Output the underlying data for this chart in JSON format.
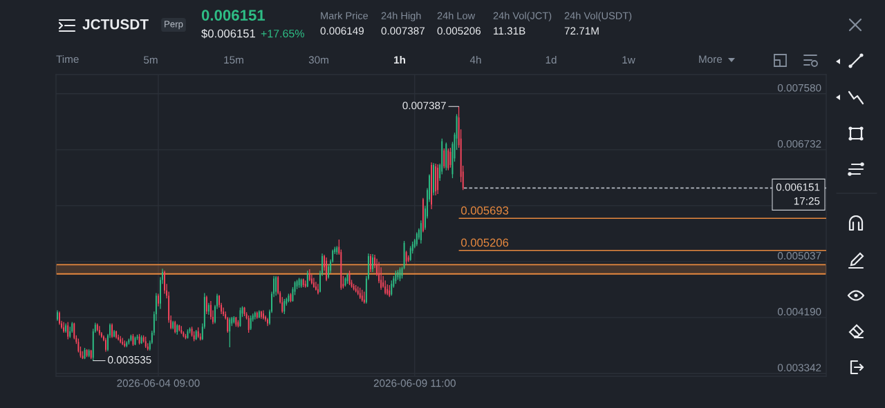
{
  "chart_data": {
    "type": "candlestick",
    "title": "JCTUSDT",
    "x": [
      "2026-06-02T09:00",
      "2026-06-02T10:00",
      "2026-06-02T11:00",
      "2026-06-02T12:00",
      "2026-06-02T13:00",
      "2026-06-02T14:00",
      "2026-06-02T15:00",
      "2026-06-02T16:00",
      "2026-06-02T17:00",
      "2026-06-02T18:00",
      "2026-06-02T19:00",
      "2026-06-02T20:00",
      "2026-06-02T21:00",
      "2026-06-02T22:00",
      "2026-06-02T23:00",
      "2026-06-03T00:00",
      "2026-06-03T01:00",
      "2026-06-03T02:00",
      "2026-06-03T03:00",
      "2026-06-03T04:00",
      "2026-06-03T05:00",
      "2026-06-03T06:00",
      "2026-06-03T07:00",
      "2026-06-03T08:00",
      "2026-06-03T09:00",
      "2026-06-03T10:00",
      "2026-06-03T11:00",
      "2026-06-03T12:00",
      "2026-06-03T13:00",
      "2026-06-03T14:00",
      "2026-06-03T15:00",
      "2026-06-03T16:00",
      "2026-06-03T17:00",
      "2026-06-03T18:00",
      "2026-06-03T19:00",
      "2026-06-03T20:00",
      "2026-06-03T21:00",
      "2026-06-03T22:00",
      "2026-06-03T23:00",
      "2026-06-04T00:00",
      "2026-06-04T01:00",
      "2026-06-04T02:00",
      "2026-06-04T03:00",
      "2026-06-04T04:00",
      "2026-06-04T05:00",
      "2026-06-04T06:00",
      "2026-06-04T07:00",
      "2026-06-04T08:00",
      "2026-06-04T09:00",
      "2026-06-04T10:00",
      "2026-06-04T11:00",
      "2026-06-04T12:00",
      "2026-06-04T13:00",
      "2026-06-04T14:00",
      "2026-06-04T15:00",
      "2026-06-04T16:00",
      "2026-06-04T17:00",
      "2026-06-04T18:00",
      "2026-06-04T19:00",
      "2026-06-04T20:00",
      "2026-06-04T21:00",
      "2026-06-04T22:00",
      "2026-06-04T23:00",
      "2026-06-05T00:00",
      "2026-06-05T01:00",
      "2026-06-05T02:00",
      "2026-06-05T03:00",
      "2026-06-05T04:00",
      "2026-06-05T05:00",
      "2026-06-05T06:00",
      "2026-06-05T07:00",
      "2026-06-05T08:00",
      "2026-06-05T09:00",
      "2026-06-05T10:00",
      "2026-06-05T11:00",
      "2026-06-05T12:00",
      "2026-06-05T13:00",
      "2026-06-05T14:00",
      "2026-06-05T15:00",
      "2026-06-05T16:00",
      "2026-06-05T17:00",
      "2026-06-05T18:00",
      "2026-06-05T19:00",
      "2026-06-05T20:00",
      "2026-06-05T21:00",
      "2026-06-05T22:00",
      "2026-06-05T23:00",
      "2026-06-06T00:00",
      "2026-06-06T01:00",
      "2026-06-06T02:00",
      "2026-06-06T03:00",
      "2026-06-06T04:00",
      "2026-06-06T05:00",
      "2026-06-06T06:00",
      "2026-06-06T07:00",
      "2026-06-06T08:00",
      "2026-06-06T09:00",
      "2026-06-06T10:00",
      "2026-06-06T11:00",
      "2026-06-06T12:00",
      "2026-06-06T13:00",
      "2026-06-06T14:00",
      "2026-06-06T15:00",
      "2026-06-06T16:00",
      "2026-06-06T17:00",
      "2026-06-06T18:00",
      "2026-06-06T19:00",
      "2026-06-06T20:00",
      "2026-06-06T21:00",
      "2026-06-06T22:00",
      "2026-06-06T23:00",
      "2026-06-07T00:00",
      "2026-06-07T01:00",
      "2026-06-07T02:00",
      "2026-06-07T03:00",
      "2026-06-07T04:00",
      "2026-06-07T05:00",
      "2026-06-07T06:00",
      "2026-06-07T07:00",
      "2026-06-07T08:00",
      "2026-06-07T09:00",
      "2026-06-07T10:00",
      "2026-06-07T11:00",
      "2026-06-07T12:00",
      "2026-06-07T13:00",
      "2026-06-07T14:00",
      "2026-06-07T15:00",
      "2026-06-07T16:00",
      "2026-06-07T17:00",
      "2026-06-07T18:00",
      "2026-06-07T19:00",
      "2026-06-07T20:00",
      "2026-06-07T21:00",
      "2026-06-07T22:00",
      "2026-06-07T23:00",
      "2026-06-08T00:00",
      "2026-06-08T01:00",
      "2026-06-08T02:00",
      "2026-06-08T03:00",
      "2026-06-08T04:00",
      "2026-06-08T05:00",
      "2026-06-08T06:00",
      "2026-06-08T07:00",
      "2026-06-08T08:00",
      "2026-06-08T09:00",
      "2026-06-08T10:00",
      "2026-06-08T11:00",
      "2026-06-08T12:00",
      "2026-06-08T13:00",
      "2026-06-08T14:00",
      "2026-06-08T15:00",
      "2026-06-08T16:00",
      "2026-06-08T17:00",
      "2026-06-08T18:00",
      "2026-06-08T19:00",
      "2026-06-08T20:00",
      "2026-06-08T21:00",
      "2026-06-08T22:00",
      "2026-06-08T23:00",
      "2026-06-09T00:00",
      "2026-06-09T01:00",
      "2026-06-09T02:00",
      "2026-06-09T03:00",
      "2026-06-09T04:00",
      "2026-06-09T05:00",
      "2026-06-09T06:00",
      "2026-06-09T07:00",
      "2026-06-09T08:00",
      "2026-06-09T09:00",
      "2026-06-09T10:00",
      "2026-06-09T11:00",
      "2026-06-09T12:00",
      "2026-06-09T13:00",
      "2026-06-09T14:00",
      "2026-06-09T15:00",
      "2026-06-09T16:00",
      "2026-06-09T17:00",
      "2026-06-09T18:00",
      "2026-06-09T19:00",
      "2026-06-09T20:00",
      "2026-06-09T21:00",
      "2026-06-09T22:00",
      "2026-06-09T23:00",
      "2026-06-10T00:00",
      "2026-06-10T01:00",
      "2026-06-10T02:00",
      "2026-06-10T03:00",
      "2026-06-10T04:00",
      "2026-06-10T05:00",
      "2026-06-10T06:00",
      "2026-06-10T07:00",
      "2026-06-10T08:00",
      "2026-06-10T09:00",
      "2026-06-10T10:00"
    ],
    "ohlc": [
      [
        0.00416,
        0.0043,
        0.00414,
        0.00427
      ],
      [
        0.00426,
        0.00428,
        0.00408,
        0.0041
      ],
      [
        0.0041,
        0.00414,
        0.00402,
        0.00404
      ],
      [
        0.00404,
        0.00412,
        0.00396,
        0.00398
      ],
      [
        0.00398,
        0.0041,
        0.00396,
        0.00407
      ],
      [
        0.00407,
        0.00412,
        0.00386,
        0.0039
      ],
      [
        0.0039,
        0.00405,
        0.00388,
        0.00398
      ],
      [
        0.00398,
        0.00412,
        0.00396,
        0.0041
      ],
      [
        0.0041,
        0.00411,
        0.00386,
        0.00388
      ],
      [
        0.00388,
        0.00392,
        0.00379,
        0.00382
      ],
      [
        0.00382,
        0.00387,
        0.00366,
        0.00368
      ],
      [
        0.00368,
        0.00375,
        0.00358,
        0.00361
      ],
      [
        0.00361,
        0.00368,
        0.00356,
        0.00357
      ],
      [
        0.00357,
        0.00373,
        0.00356,
        0.0037
      ],
      [
        0.0037,
        0.00371,
        0.00359,
        0.00361
      ],
      [
        0.00361,
        0.00371,
        0.00359,
        0.00369
      ],
      [
        0.00369,
        0.0037,
        0.00356,
        0.00358
      ],
      [
        0.00358,
        0.00402,
        0.003535,
        0.00398
      ],
      [
        0.00398,
        0.00411,
        0.00396,
        0.00408
      ],
      [
        0.00408,
        0.0041,
        0.00398,
        0.004
      ],
      [
        0.004,
        0.00406,
        0.00392,
        0.00395
      ],
      [
        0.00395,
        0.00397,
        0.00388,
        0.0039
      ],
      [
        0.0039,
        0.00392,
        0.00383,
        0.00385
      ],
      [
        0.00385,
        0.00388,
        0.00367,
        0.0037
      ],
      [
        0.0037,
        0.00394,
        0.00368,
        0.00392
      ],
      [
        0.00392,
        0.0041,
        0.00388,
        0.00408
      ],
      [
        0.00408,
        0.0041,
        0.00388,
        0.0039
      ],
      [
        0.0039,
        0.004,
        0.00389,
        0.00398
      ],
      [
        0.00398,
        0.00399,
        0.00387,
        0.00389
      ],
      [
        0.00389,
        0.00393,
        0.00384,
        0.00386
      ],
      [
        0.00386,
        0.00391,
        0.0038,
        0.00382
      ],
      [
        0.00382,
        0.00388,
        0.00377,
        0.00379
      ],
      [
        0.00379,
        0.00384,
        0.00374,
        0.00376
      ],
      [
        0.00376,
        0.00383,
        0.00374,
        0.00381
      ],
      [
        0.00381,
        0.00387,
        0.00378,
        0.00385
      ],
      [
        0.00385,
        0.00393,
        0.00383,
        0.00391
      ],
      [
        0.00391,
        0.00394,
        0.00376,
        0.00378
      ],
      [
        0.00378,
        0.0039,
        0.00377,
        0.00388
      ],
      [
        0.00388,
        0.00393,
        0.00385,
        0.0039
      ],
      [
        0.0039,
        0.00394,
        0.00378,
        0.0038
      ],
      [
        0.0038,
        0.00392,
        0.00379,
        0.00389
      ],
      [
        0.00389,
        0.00392,
        0.00381,
        0.00383
      ],
      [
        0.00383,
        0.0039,
        0.00373,
        0.00375
      ],
      [
        0.00375,
        0.0038,
        0.00369,
        0.00371
      ],
      [
        0.00371,
        0.00384,
        0.00369,
        0.00381
      ],
      [
        0.00381,
        0.00399,
        0.00379,
        0.00396
      ],
      [
        0.00396,
        0.00428,
        0.00392,
        0.00424
      ],
      [
        0.00424,
        0.00456,
        0.00414,
        0.00452
      ],
      [
        0.00452,
        0.00455,
        0.00436,
        0.0044
      ],
      [
        0.0044,
        0.0048,
        0.00432,
        0.00476
      ],
      [
        0.00476,
        0.00493,
        0.0047,
        0.00488
      ],
      [
        0.00488,
        0.0049,
        0.00455,
        0.0046
      ],
      [
        0.0046,
        0.0047,
        0.00448,
        0.00452
      ],
      [
        0.00452,
        0.00458,
        0.00411,
        0.00415
      ],
      [
        0.00415,
        0.00422,
        0.00401,
        0.00403
      ],
      [
        0.00403,
        0.00414,
        0.00401,
        0.00412
      ],
      [
        0.00412,
        0.00414,
        0.00395,
        0.00397
      ],
      [
        0.00397,
        0.00409,
        0.00393,
        0.00407
      ],
      [
        0.00407,
        0.00408,
        0.00398,
        0.004
      ],
      [
        0.004,
        0.00406,
        0.00394,
        0.00396
      ],
      [
        0.00396,
        0.00398,
        0.00389,
        0.00391
      ],
      [
        0.00391,
        0.00394,
        0.00386,
        0.00388
      ],
      [
        0.00388,
        0.00401,
        0.00387,
        0.00398
      ],
      [
        0.00398,
        0.00404,
        0.00395,
        0.00402
      ],
      [
        0.00402,
        0.00405,
        0.0039,
        0.00392
      ],
      [
        0.00392,
        0.00398,
        0.00383,
        0.00386
      ],
      [
        0.00386,
        0.004,
        0.00385,
        0.00398
      ],
      [
        0.00398,
        0.00404,
        0.00388,
        0.0039
      ],
      [
        0.0039,
        0.00395,
        0.00384,
        0.00386
      ],
      [
        0.00386,
        0.0041,
        0.00385,
        0.00405
      ],
      [
        0.00405,
        0.00456,
        0.00402,
        0.0045
      ],
      [
        0.0045,
        0.00452,
        0.00424,
        0.00428
      ],
      [
        0.00428,
        0.00441,
        0.00423,
        0.00438
      ],
      [
        0.00438,
        0.00444,
        0.00416,
        0.0042
      ],
      [
        0.0042,
        0.0043,
        0.00409,
        0.00412
      ],
      [
        0.00412,
        0.00438,
        0.0041,
        0.00436
      ],
      [
        0.00436,
        0.00455,
        0.00432,
        0.00452
      ],
      [
        0.00452,
        0.00453,
        0.00434,
        0.00438
      ],
      [
        0.00438,
        0.00441,
        0.00424,
        0.00428
      ],
      [
        0.00428,
        0.00434,
        0.00421,
        0.00424
      ],
      [
        0.00424,
        0.00428,
        0.00416,
        0.00418
      ],
      [
        0.00418,
        0.0042,
        0.00396,
        0.00398
      ],
      [
        0.00398,
        0.00419,
        0.00374,
        0.00416
      ],
      [
        0.0041,
        0.0042,
        0.00406,
        0.00418
      ],
      [
        0.00412,
        0.00421,
        0.0041,
        0.00419
      ],
      [
        0.00419,
        0.0042,
        0.00405,
        0.00408
      ],
      [
        0.00412,
        0.00415,
        0.00404,
        0.00406
      ],
      [
        0.00406,
        0.00434,
        0.00405,
        0.0043
      ],
      [
        0.00425,
        0.00436,
        0.0042,
        0.00434
      ],
      [
        0.00434,
        0.00435,
        0.00421,
        0.00424
      ],
      [
        0.00424,
        0.00427,
        0.00416,
        0.00418
      ],
      [
        0.00418,
        0.00422,
        0.00396,
        0.004
      ],
      [
        0.00402,
        0.00422,
        0.004,
        0.00418
      ],
      [
        0.00416,
        0.00425,
        0.00413,
        0.00422
      ],
      [
        0.0042,
        0.00428,
        0.00416,
        0.00426
      ],
      [
        0.00426,
        0.00428,
        0.00417,
        0.00419
      ],
      [
        0.00419,
        0.0043,
        0.00418,
        0.00428
      ],
      [
        0.00428,
        0.00429,
        0.00417,
        0.0042
      ],
      [
        0.00425,
        0.0043,
        0.00416,
        0.00418
      ],
      [
        0.0042,
        0.00422,
        0.00413,
        0.00416
      ],
      [
        0.00416,
        0.00418,
        0.00406,
        0.0041
      ],
      [
        0.0041,
        0.00431,
        0.00408,
        0.00428
      ],
      [
        0.00428,
        0.00458,
        0.00426,
        0.00455
      ],
      [
        0.00455,
        0.00482,
        0.0045,
        0.00478
      ],
      [
        0.00458,
        0.00482,
        0.00452,
        0.0048
      ],
      [
        0.0048,
        0.00482,
        0.00454,
        0.00456
      ],
      [
        0.00456,
        0.00459,
        0.0044,
        0.00442
      ],
      [
        0.00442,
        0.0045,
        0.00426,
        0.00428
      ],
      [
        0.00428,
        0.00447,
        0.00424,
        0.00444
      ],
      [
        0.0044,
        0.00449,
        0.00437,
        0.00447
      ],
      [
        0.00444,
        0.00455,
        0.00442,
        0.00452
      ],
      [
        0.00454,
        0.00456,
        0.00442,
        0.00444
      ],
      [
        0.00444,
        0.00465,
        0.00443,
        0.00462
      ],
      [
        0.00458,
        0.00474,
        0.00453,
        0.00472
      ],
      [
        0.00466,
        0.00476,
        0.00462,
        0.00474
      ],
      [
        0.00468,
        0.00479,
        0.00464,
        0.00477
      ],
      [
        0.00466,
        0.00478,
        0.00464,
        0.00476
      ],
      [
        0.00477,
        0.00478,
        0.00465,
        0.00468
      ],
      [
        0.0047,
        0.00475,
        0.00464,
        0.00466
      ],
      [
        0.00466,
        0.0049,
        0.00465,
        0.00486
      ],
      [
        0.00486,
        0.00492,
        0.00474,
        0.00476
      ],
      [
        0.00478,
        0.00484,
        0.00469,
        0.00471
      ],
      [
        0.00472,
        0.00479,
        0.00464,
        0.00465
      ],
      [
        0.00466,
        0.00473,
        0.0046,
        0.00461
      ],
      [
        0.00462,
        0.0047,
        0.00454,
        0.00456
      ],
      [
        0.00458,
        0.0049,
        0.00457,
        0.00486
      ],
      [
        0.00486,
        0.00516,
        0.00482,
        0.00512
      ],
      [
        0.00512,
        0.00514,
        0.0049,
        0.00495
      ],
      [
        0.00505,
        0.0051,
        0.00474,
        0.00476
      ],
      [
        0.0048,
        0.005,
        0.00478,
        0.00496
      ],
      [
        0.0049,
        0.00507,
        0.00486,
        0.00504
      ],
      [
        0.00504,
        0.00522,
        0.00502,
        0.0052
      ],
      [
        0.00518,
        0.00526,
        0.00515,
        0.00523
      ],
      [
        0.00518,
        0.00527,
        0.00514,
        0.00525
      ],
      [
        0.00526,
        0.00537,
        0.00514,
        0.00516
      ],
      [
        0.00518,
        0.00522,
        0.00461,
        0.00464
      ],
      [
        0.0047,
        0.00482,
        0.00463,
        0.00466
      ],
      [
        0.00468,
        0.0048,
        0.00466,
        0.00478
      ],
      [
        0.00474,
        0.00486,
        0.0047,
        0.00484
      ],
      [
        0.00486,
        0.0049,
        0.00468,
        0.0047
      ],
      [
        0.00472,
        0.00476,
        0.00464,
        0.00466
      ],
      [
        0.00467,
        0.0047,
        0.0046,
        0.00462
      ],
      [
        0.00463,
        0.00468,
        0.00457,
        0.00459
      ],
      [
        0.0046,
        0.00466,
        0.00453,
        0.00455
      ],
      [
        0.00456,
        0.00464,
        0.00447,
        0.00449
      ],
      [
        0.00452,
        0.00461,
        0.00443,
        0.00445
      ],
      [
        0.00446,
        0.00458,
        0.0044,
        0.00442
      ],
      [
        0.00442,
        0.00482,
        0.0044,
        0.00478
      ],
      [
        0.00478,
        0.00516,
        0.00476,
        0.00512
      ],
      [
        0.00512,
        0.00515,
        0.00488,
        0.00492
      ],
      [
        0.00492,
        0.00515,
        0.00488,
        0.0051
      ],
      [
        0.0051,
        0.00514,
        0.00494,
        0.00498
      ],
      [
        0.005,
        0.00508,
        0.00482,
        0.00484
      ],
      [
        0.00486,
        0.00503,
        0.00471,
        0.00474
      ],
      [
        0.00476,
        0.00495,
        0.00461,
        0.00464
      ],
      [
        0.00472,
        0.00482,
        0.00464,
        0.00466
      ],
      [
        0.00466,
        0.00475,
        0.00454,
        0.00456
      ],
      [
        0.00462,
        0.00469,
        0.00453,
        0.00455
      ],
      [
        0.0046,
        0.00468,
        0.0045,
        0.00452
      ],
      [
        0.00454,
        0.00475,
        0.00452,
        0.0047
      ],
      [
        0.00466,
        0.00482,
        0.00464,
        0.00478
      ],
      [
        0.00474,
        0.0049,
        0.0047,
        0.00486
      ],
      [
        0.0048,
        0.00491,
        0.00476,
        0.00488
      ],
      [
        0.00478,
        0.00495,
        0.00474,
        0.00492
      ],
      [
        0.00482,
        0.00496,
        0.00478,
        0.00494
      ],
      [
        0.00494,
        0.00535,
        0.00492,
        0.00532
      ],
      [
        0.00518,
        0.0052,
        0.005,
        0.00504
      ],
      [
        0.0051,
        0.00513,
        0.00503,
        0.00505
      ],
      [
        0.00506,
        0.00527,
        0.00505,
        0.00524
      ],
      [
        0.0052,
        0.00534,
        0.00516,
        0.0053
      ],
      [
        0.00526,
        0.00538,
        0.00524,
        0.00536
      ],
      [
        0.0053,
        0.00548,
        0.00527,
        0.00546
      ],
      [
        0.0054,
        0.00554,
        0.00537,
        0.00552
      ],
      [
        0.00536,
        0.00566,
        0.00531,
        0.00562
      ],
      [
        0.00598,
        0.006,
        0.00548,
        0.0055
      ],
      [
        0.00555,
        0.00588,
        0.00552,
        0.00584
      ],
      [
        0.00572,
        0.00615,
        0.00569,
        0.00612
      ],
      [
        0.00598,
        0.00636,
        0.00594,
        0.00634
      ],
      [
        0.0065,
        0.00654,
        0.00583,
        0.0059
      ],
      [
        0.00608,
        0.00653,
        0.00604,
        0.0065
      ],
      [
        0.00648,
        0.00652,
        0.00604,
        0.0061
      ],
      [
        0.00646,
        0.00651,
        0.00606,
        0.00612
      ],
      [
        0.0063,
        0.00652,
        0.00626,
        0.0065
      ],
      [
        0.0064,
        0.0069,
        0.00636,
        0.00686
      ],
      [
        0.00672,
        0.00675,
        0.00645,
        0.00648
      ],
      [
        0.00646,
        0.00684,
        0.00642,
        0.00682
      ],
      [
        0.00672,
        0.00675,
        0.00642,
        0.00645
      ],
      [
        0.0067,
        0.00676,
        0.00646,
        0.0065
      ],
      [
        0.00636,
        0.00685,
        0.0063,
        0.00682
      ],
      [
        0.0066,
        0.00699,
        0.00655,
        0.00696
      ],
      [
        0.0069,
        0.00727,
        0.00673,
        0.00724
      ],
      [
        0.00722,
        0.007387,
        0.00676,
        0.0068
      ],
      [
        0.0069,
        0.00704,
        0.00624,
        0.00632
      ],
      [
        0.0064,
        0.00649,
        0.00612,
        0.006151
      ]
    ],
    "colors": [
      "#2ebd85",
      "#f6465d",
      "#f6465d",
      "#f6465d",
      "#2ebd85",
      "#f6465d",
      "#2ebd85",
      "#2ebd85",
      "#f6465d",
      "#f6465d",
      "#f6465d",
      "#f6465d",
      "#f6465d",
      "#2ebd85",
      "#f6465d",
      "#2ebd85",
      "#f6465d",
      "#2ebd85",
      "#2ebd85",
      "#f6465d",
      "#f6465d",
      "#f6465d",
      "#f6465d",
      "#f6465d",
      "#2ebd85",
      "#2ebd85",
      "#f6465d",
      "#2ebd85",
      "#f6465d",
      "#f6465d",
      "#f6465d",
      "#f6465d",
      "#f6465d",
      "#2ebd85",
      "#2ebd85",
      "#2ebd85",
      "#f6465d",
      "#2ebd85",
      "#2ebd85",
      "#f6465d",
      "#2ebd85",
      "#f6465d",
      "#f6465d",
      "#f6465d",
      "#2ebd85",
      "#2ebd85",
      "#2ebd85",
      "#2ebd85",
      "#f6465d",
      "#2ebd85",
      "#2ebd85",
      "#f6465d",
      "#f6465d",
      "#f6465d",
      "#f6465d",
      "#2ebd85",
      "#f6465d",
      "#2ebd85",
      "#f6465d",
      "#f6465d",
      "#f6465d",
      "#f6465d",
      "#2ebd85",
      "#2ebd85",
      "#f6465d",
      "#f6465d",
      "#2ebd85",
      "#f6465d",
      "#f6465d",
      "#2ebd85",
      "#2ebd85",
      "#f6465d",
      "#2ebd85",
      "#f6465d",
      "#f6465d",
      "#2ebd85",
      "#2ebd85",
      "#f6465d",
      "#f6465d",
      "#f6465d",
      "#f6465d",
      "#f6465d",
      "#2ebd85",
      "#2ebd85",
      "#2ebd85",
      "#f6465d",
      "#f6465d",
      "#2ebd85",
      "#2ebd85",
      "#f6465d",
      "#f6465d",
      "#f6465d",
      "#2ebd85",
      "#2ebd85",
      "#2ebd85",
      "#f6465d",
      "#2ebd85",
      "#f6465d",
      "#f6465d",
      "#f6465d",
      "#f6465d",
      "#2ebd85",
      "#2ebd85",
      "#2ebd85",
      "#2ebd85",
      "#f6465d",
      "#f6465d",
      "#f6465d",
      "#2ebd85",
      "#2ebd85",
      "#2ebd85",
      "#f6465d",
      "#2ebd85",
      "#2ebd85",
      "#2ebd85",
      "#2ebd85",
      "#2ebd85",
      "#f6465d",
      "#f6465d",
      "#2ebd85",
      "#f6465d",
      "#f6465d",
      "#f6465d",
      "#f6465d",
      "#f6465d",
      "#2ebd85",
      "#2ebd85",
      "#f6465d",
      "#f6465d",
      "#2ebd85",
      "#2ebd85",
      "#2ebd85",
      "#2ebd85",
      "#2ebd85",
      "#f6465d",
      "#f6465d",
      "#f6465d",
      "#2ebd85",
      "#2ebd85",
      "#f6465d",
      "#f6465d",
      "#f6465d",
      "#f6465d",
      "#f6465d",
      "#f6465d",
      "#f6465d",
      "#f6465d",
      "#2ebd85",
      "#2ebd85",
      "#f6465d",
      "#2ebd85",
      "#f6465d",
      "#f6465d",
      "#f6465d",
      "#f6465d",
      "#f6465d",
      "#f6465d",
      "#f6465d",
      "#f6465d",
      "#2ebd85",
      "#2ebd85",
      "#2ebd85",
      "#2ebd85",
      "#2ebd85",
      "#2ebd85",
      "#2ebd85",
      "#f6465d",
      "#f6465d",
      "#2ebd85",
      "#2ebd85",
      "#2ebd85",
      "#2ebd85",
      "#2ebd85",
      "#2ebd85",
      "#f6465d",
      "#2ebd85",
      "#2ebd85",
      "#2ebd85",
      "#f6465d",
      "#2ebd85",
      "#f6465d",
      "#f6465d",
      "#2ebd85",
      "#2ebd85",
      "#f6465d",
      "#2ebd85",
      "#f6465d",
      "#f6465d",
      "#2ebd85",
      "#2ebd85",
      "#2ebd85",
      "#f6465d",
      "#f6465d",
      "#f6465d"
    ],
    "xlim": [
      "2026-06-02T08:20",
      "2026-06-17T14:50"
    ],
    "xticks": [
      {
        "value": "2026-06-04T09:00",
        "label": "2026-06-04 09:00"
      },
      {
        "value": "2026-06-09T11:00",
        "label": "2026-06-09 11:00"
      }
    ],
    "ylim": [
      0.0033,
      0.00787
    ],
    "yticks": [
      {
        "value": 0.00758,
        "label": "0.007580"
      },
      0.006732,
      {
        "value": 0.005884,
        "label": null
      },
      0.005037,
      {
        "value": 0.00419,
        "label": "0.004190"
      },
      0.003342
    ],
    "grid": true,
    "ref_lines": [
      {
        "axis": "y",
        "value": 0.006151,
        "label": "0.006151",
        "color": "#b7bdc6",
        "line_style": "dashed"
      },
      {
        "axis": "y",
        "value": 0.005693,
        "label": "0.005693",
        "color": "#e8893f"
      },
      {
        "axis": "y",
        "value": 0.005206,
        "label": "0.005206",
        "color": "#e8893f"
      }
    ],
    "bands": [
      {
        "axis": "y",
        "from": 0.00485,
        "to": 0.00499,
        "color": "#e8893f"
      }
    ],
    "annotations": [
      "Perp",
      "0.006151",
      "$0.006151",
      "+17.65%",
      "Mark Price",
      "0.006149",
      "24h High",
      "0.007387",
      "24h Low",
      "0.005206",
      "24h Vol(JCT)",
      "11.31B",
      "24h Vol(USDT)",
      "72.71M",
      "Time",
      "5m",
      "15m",
      "30m",
      "1h",
      "4h",
      "1d",
      "1w",
      "More",
      "17:25",
      {
        "text": "0.007387",
        "x": "2026-06-10T08:00",
        "y": 0.007387
      },
      {
        "text": "0.003535",
        "x": "2026-06-03T02:00",
        "y": 0.003535
      }
    ]
  }
}
